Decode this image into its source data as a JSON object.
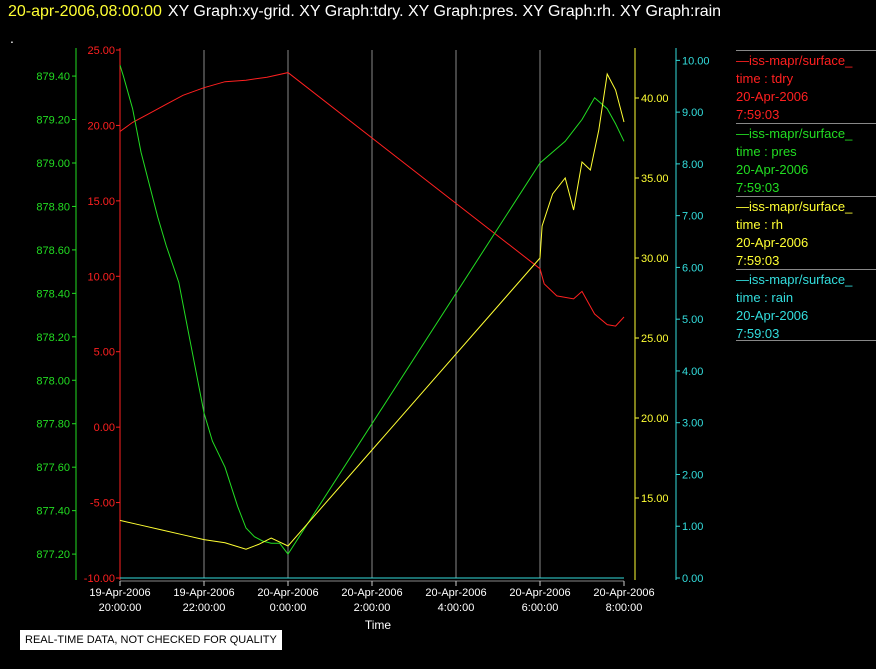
{
  "header": {
    "time": "20-apr-2006,08:00:00",
    "graphs": "XY Graph:xy-grid.  XY Graph:tdry.  XY Graph:pres.  XY Graph:rh.  XY Graph:rain"
  },
  "dot": ".",
  "quality_note": "REAL-TIME DATA, NOT CHECKED FOR QUALITY",
  "colors": {
    "tdry": "#ff2020",
    "pres": "#22dd22",
    "rh": "#ffff33",
    "rain": "#33dddd",
    "grid": "#888888"
  },
  "legend": [
    {
      "series": "tdry",
      "lines": [
        "—iss-mapr/surface_",
        "time : tdry",
        "20-Apr-2006",
        "7:59:03"
      ]
    },
    {
      "series": "pres",
      "lines": [
        "—iss-mapr/surface_",
        "time : pres",
        "20-Apr-2006",
        "7:59:03"
      ]
    },
    {
      "series": "rh",
      "lines": [
        "—iss-mapr/surface_",
        "time : rh",
        "20-Apr-2006",
        "7:59:03"
      ]
    },
    {
      "series": "rain",
      "lines": [
        "—iss-mapr/surface_",
        "time : rain",
        "20-Apr-2006",
        "7:59:03"
      ]
    }
  ],
  "chart_data": {
    "type": "line",
    "xlabel": "Time",
    "x_ticks": [
      {
        "hours": 0,
        "date": "19-Apr-2006",
        "time": "20:00:00"
      },
      {
        "hours": 2,
        "date": "19-Apr-2006",
        "time": "22:00:00"
      },
      {
        "hours": 4,
        "date": "20-Apr-2006",
        "time": "0:00:00"
      },
      {
        "hours": 6,
        "date": "20-Apr-2006",
        "time": "2:00:00"
      },
      {
        "hours": 8,
        "date": "20-Apr-2006",
        "time": "4:00:00"
      },
      {
        "hours": 10,
        "date": "20-Apr-2006",
        "time": "6:00:00"
      },
      {
        "hours": 12,
        "date": "20-Apr-2006",
        "time": "8:00:00"
      }
    ],
    "xlim": [
      0,
      12
    ],
    "grid": true,
    "axes": {
      "tdry": {
        "ylim": [
          -10,
          25
        ],
        "ticks": [
          "25.00",
          "20.00",
          "15.00",
          "10.00",
          "5.00",
          "0.00",
          "-5.00",
          "-10.00"
        ]
      },
      "pres": {
        "ylim": [
          877.09,
          879.52
        ],
        "ticks": [
          "879.40",
          "879.20",
          "879.00",
          "878.80",
          "878.60",
          "878.40",
          "878.20",
          "878.00",
          "877.80",
          "877.60",
          "877.40",
          "877.20"
        ]
      },
      "rh": {
        "ylim": [
          10,
          43
        ],
        "ticks": [
          "40.00",
          "35.00",
          "30.00",
          "25.00",
          "20.00",
          "15.00"
        ]
      },
      "rain": {
        "ylim": [
          0,
          10.2
        ],
        "ticks": [
          "10.00",
          "9.00",
          "8.00",
          "7.00",
          "6.00",
          "5.00",
          "4.00",
          "3.00",
          "2.00",
          "1.00",
          "0.00"
        ]
      }
    },
    "series": [
      {
        "key": "tdry",
        "x": [
          0,
          0.3,
          0.7,
          1.1,
          1.5,
          2.0,
          2.5,
          3.0,
          3.5,
          4.0,
          10.0,
          10.1,
          10.4,
          10.8,
          11.0,
          11.3,
          11.6,
          11.8,
          12.0
        ],
        "y": [
          19.6,
          20.2,
          20.8,
          21.4,
          22.0,
          22.5,
          22.9,
          23.0,
          23.2,
          23.5,
          10.5,
          9.5,
          8.7,
          8.5,
          9.0,
          7.5,
          6.8,
          6.7,
          7.3
        ]
      },
      {
        "key": "pres",
        "x": [
          0,
          0.08,
          0.3,
          0.5,
          0.7,
          0.9,
          1.1,
          1.4,
          1.7,
          2.0,
          2.2,
          2.5,
          2.8,
          3.0,
          3.2,
          3.4,
          3.6,
          3.8,
          4.0,
          10.0,
          10.3,
          10.6,
          11.0,
          11.3,
          11.6,
          11.8,
          12.0
        ],
        "y": [
          879.45,
          879.4,
          879.25,
          879.05,
          878.9,
          878.75,
          878.62,
          878.45,
          878.15,
          877.85,
          877.72,
          877.6,
          877.42,
          877.32,
          877.28,
          877.26,
          877.25,
          877.25,
          877.2,
          879.0,
          879.05,
          879.1,
          879.2,
          879.3,
          879.25,
          879.18,
          879.1
        ]
      },
      {
        "key": "rh",
        "x": [
          0,
          0.5,
          1.0,
          1.5,
          2.0,
          2.5,
          3.0,
          3.3,
          3.6,
          4.0,
          10.0,
          10.05,
          10.3,
          10.6,
          10.8,
          11.0,
          11.2,
          11.4,
          11.6,
          11.8,
          12.0
        ],
        "y": [
          13.6,
          13.3,
          13.0,
          12.7,
          12.4,
          12.2,
          11.8,
          12.1,
          12.5,
          12.0,
          30.0,
          32.0,
          34.0,
          35.0,
          33.0,
          36.0,
          35.5,
          38.0,
          41.5,
          40.5,
          38.5
        ]
      },
      {
        "key": "rain",
        "x": [
          0,
          12
        ],
        "y": [
          0,
          0
        ]
      }
    ]
  }
}
